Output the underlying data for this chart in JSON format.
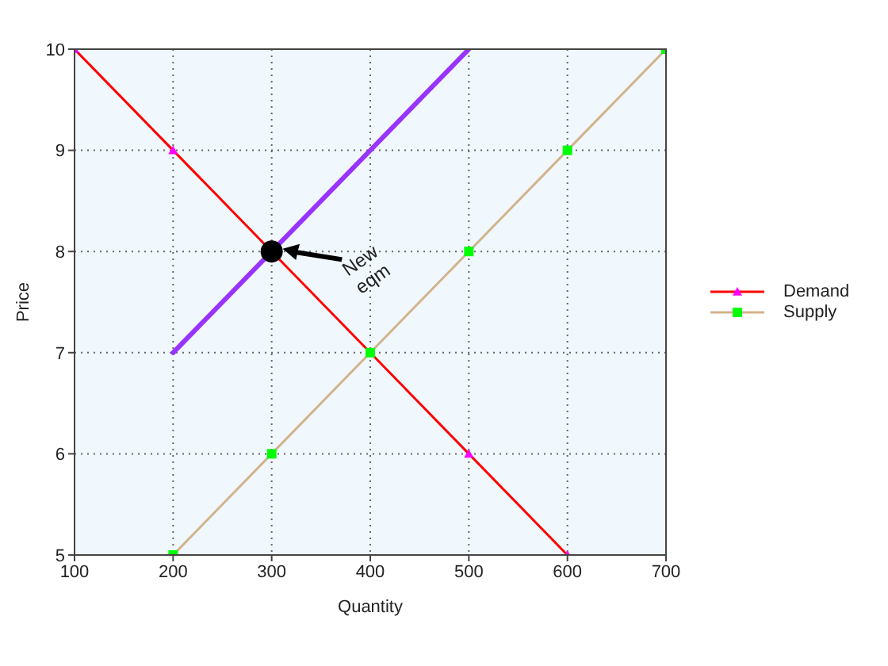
{
  "chart_data": {
    "type": "line",
    "xlabel": "Quantity",
    "ylabel": "Price",
    "xlim": [
      100,
      700
    ],
    "xticks": [
      100,
      200,
      300,
      400,
      500,
      600,
      700
    ],
    "ylim": [
      5,
      10
    ],
    "yticks": [
      5,
      6,
      7,
      8,
      9,
      10
    ],
    "grid": true,
    "legend": "right",
    "line_style": "solid",
    "series": [
      {
        "name": "Demand",
        "color": "#ff0000",
        "marker": "triangle",
        "colors": [
          "#ff00ff",
          "#ff00ff",
          "#ff00ff",
          "#ff00ff",
          "#ff00ff",
          "#ff00ff"
        ],
        "x": [
          100,
          200,
          300,
          400,
          500,
          600
        ],
        "values": [
          10,
          9,
          8,
          7,
          6,
          5
        ]
      },
      {
        "name": "Supply",
        "color": "#d2b48c",
        "marker": "square",
        "colors": [
          "#00ff00",
          "#00ff00",
          "#00ff00",
          "#00ff00",
          "#00ff00",
          "#00ff00"
        ],
        "x": [
          200,
          300,
          400,
          500,
          600,
          700
        ],
        "values": [
          5,
          6,
          7,
          8,
          9,
          10
        ]
      },
      {
        "color": "#9933ff",
        "marker": "none",
        "x": [
          200,
          500
        ],
        "values": [
          7,
          10
        ]
      },
      {
        "type": "scatter",
        "color": "#000000",
        "marker": "circle",
        "x": [
          300
        ],
        "values": [
          8
        ]
      }
    ],
    "annotations": [
      "New eqm"
    ]
  }
}
